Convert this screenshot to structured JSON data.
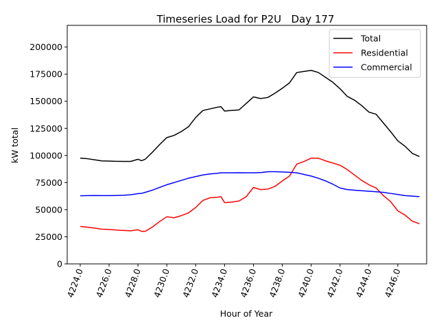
{
  "chart_data": {
    "type": "line",
    "title": "Timeseries Load for P2U   Day 177",
    "xlabel": "Hour of Year",
    "ylabel": "kW total",
    "xlim": [
      4223.1,
      4248.0
    ],
    "ylim": [
      0,
      220000
    ],
    "xticks": [
      4224,
      4226,
      4228,
      4230,
      4232,
      4234,
      4236,
      4238,
      4240,
      4242,
      4244,
      4246
    ],
    "xtick_labels": [
      "4224.0",
      "4226.0",
      "4228.0",
      "4230.0",
      "4232.0",
      "4234.0",
      "4236.0",
      "4238.0",
      "4240.0",
      "4242.0",
      "4244.0",
      "4246.0"
    ],
    "yticks": [
      0,
      25000,
      50000,
      75000,
      100000,
      125000,
      150000,
      175000,
      200000
    ],
    "ytick_labels": [
      "0",
      "25000",
      "50000",
      "75000",
      "100000",
      "125000",
      "150000",
      "175000",
      "200000"
    ],
    "legend_position": "top-right",
    "x": [
      4224.0,
      4224.5,
      4225.0,
      4225.5,
      4226.0,
      4226.5,
      4227.0,
      4227.5,
      4228.0,
      4228.25,
      4228.5,
      4229.0,
      4229.5,
      4230.0,
      4230.5,
      4231.0,
      4231.5,
      4232.0,
      4232.5,
      4233.0,
      4233.5,
      4233.75,
      4234.0,
      4234.5,
      4235.0,
      4235.5,
      4236.0,
      4236.5,
      4237.0,
      4237.5,
      4238.0,
      4238.5,
      4239.0,
      4239.5,
      4240.0,
      4240.5,
      4241.0,
      4241.5,
      4242.0,
      4242.5,
      4243.0,
      4243.5,
      4244.0,
      4244.5,
      4245.0,
      4245.5,
      4246.0,
      4246.5,
      4247.0,
      4247.5
    ],
    "series": [
      {
        "name": "Total",
        "color": "#000000",
        "values": [
          97500,
          97000,
          96000,
          95000,
          94800,
          94600,
          94500,
          94500,
          96500,
          95200,
          96500,
          103000,
          110000,
          116500,
          118500,
          122000,
          126500,
          135000,
          141500,
          143000,
          144500,
          145000,
          141000,
          141500,
          142000,
          148000,
          154000,
          152500,
          153500,
          157500,
          162000,
          167000,
          176500,
          177500,
          178500,
          176500,
          172000,
          167500,
          161500,
          154500,
          151000,
          146000,
          140000,
          138000,
          130000,
          122000,
          113500,
          108500,
          102000,
          99000
        ]
      },
      {
        "name": "Residential",
        "color": "#ff0000",
        "values": [
          34500,
          33800,
          33000,
          32000,
          31800,
          31200,
          30800,
          30500,
          31500,
          30000,
          30000,
          34000,
          39000,
          43500,
          42500,
          44500,
          47000,
          52000,
          58500,
          61000,
          61500,
          62000,
          56500,
          57000,
          58000,
          62000,
          70500,
          68500,
          69000,
          71500,
          76500,
          81000,
          92000,
          94500,
          97500,
          97500,
          95000,
          93000,
          91000,
          87000,
          82000,
          77000,
          73000,
          70000,
          63000,
          57500,
          49000,
          45000,
          39500,
          37000
        ]
      },
      {
        "name": "Commercial",
        "color": "#0000ff",
        "values": [
          62800,
          63000,
          63100,
          63000,
          63000,
          63100,
          63300,
          63800,
          64800,
          65000,
          66000,
          68000,
          70500,
          73000,
          75000,
          77000,
          79000,
          80500,
          82000,
          83000,
          83500,
          84000,
          84000,
          84000,
          84100,
          84000,
          84000,
          84200,
          85000,
          85000,
          84800,
          84500,
          84000,
          82500,
          81000,
          79000,
          76500,
          73500,
          70000,
          68500,
          68000,
          67500,
          67000,
          66500,
          66000,
          65000,
          64000,
          63000,
          62500,
          62000
        ]
      }
    ]
  }
}
